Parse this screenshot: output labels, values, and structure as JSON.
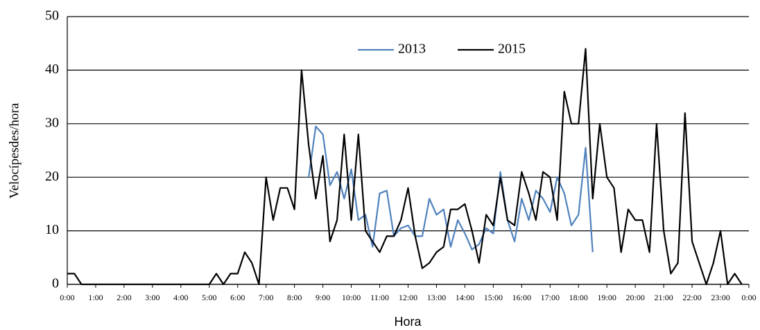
{
  "chart_data": {
    "type": "line",
    "x_label": "Hora",
    "y_label": "Velocípesdes/hora",
    "categories": [
      "0:00",
      null,
      null,
      null,
      "1:00",
      null,
      null,
      null,
      "2:00",
      null,
      null,
      null,
      "3:00",
      null,
      null,
      null,
      "4:00",
      null,
      null,
      null,
      "5:00",
      null,
      null,
      null,
      "6:00",
      null,
      null,
      null,
      "7:00",
      null,
      null,
      null,
      "8:00",
      null,
      null,
      null,
      "9:00",
      null,
      null,
      null,
      "10:00",
      null,
      null,
      null,
      "11:00",
      null,
      null,
      null,
      "12:00",
      null,
      null,
      null,
      "13:00",
      null,
      null,
      null,
      "14:00",
      null,
      null,
      null,
      "15:00",
      null,
      null,
      null,
      "16:00",
      null,
      null,
      null,
      "17:00",
      null,
      null,
      null,
      "18:00",
      null,
      null,
      null,
      "19:00",
      null,
      null,
      null,
      "20:00",
      null,
      null,
      null,
      "21:00",
      null,
      null,
      null,
      "22:00",
      null,
      null,
      null,
      "23:00",
      null,
      null,
      null,
      "0:00"
    ],
    "series": [
      {
        "name": "2013",
        "color": "#4f81bd",
        "values": [
          null,
          null,
          null,
          null,
          null,
          null,
          null,
          null,
          null,
          null,
          null,
          null,
          null,
          null,
          null,
          null,
          null,
          null,
          null,
          null,
          null,
          null,
          null,
          null,
          null,
          null,
          null,
          null,
          null,
          null,
          null,
          null,
          null,
          null,
          20,
          29.5,
          28,
          18.5,
          21,
          16,
          21.5,
          12,
          13,
          7,
          17,
          17.5,
          9,
          10.5,
          11,
          9,
          9,
          16,
          13,
          14,
          7,
          12,
          9.5,
          6.5,
          7.5,
          10.5,
          9.5,
          21,
          12,
          8,
          16,
          12,
          17.5,
          16,
          13.5,
          20,
          17,
          11,
          13,
          25.5,
          6,
          null,
          null,
          null,
          null,
          null,
          null,
          null,
          null,
          null,
          null,
          null,
          null,
          null,
          null,
          null,
          null,
          null,
          null,
          null,
          null,
          null,
          null
        ]
      },
      {
        "name": "2015",
        "color": "#000000",
        "values": [
          2,
          2,
          0,
          0,
          0,
          0,
          0,
          0,
          0,
          0,
          0,
          0,
          0,
          0,
          0,
          0,
          0,
          0,
          0,
          0,
          0,
          2,
          0,
          2,
          2,
          6,
          4,
          0,
          20,
          12,
          18,
          18,
          14,
          40,
          26,
          16,
          24,
          8,
          12,
          28,
          12,
          28,
          10,
          8,
          6,
          9,
          9,
          12,
          18,
          9,
          3,
          4,
          6,
          7,
          14,
          14,
          15,
          10,
          4,
          13,
          11,
          20,
          12,
          11,
          21,
          17,
          12,
          21,
          20,
          12,
          36,
          30,
          30,
          44,
          16,
          30,
          20,
          18,
          6,
          14,
          12,
          12,
          6,
          30,
          10,
          2,
          4,
          32,
          8,
          4,
          0,
          4,
          10,
          0,
          2,
          0,
          null
        ]
      }
    ],
    "ylim": [
      0,
      50
    ],
    "yticks": [
      0,
      10,
      20,
      30,
      40,
      50
    ],
    "grid": true,
    "legend": "top"
  }
}
